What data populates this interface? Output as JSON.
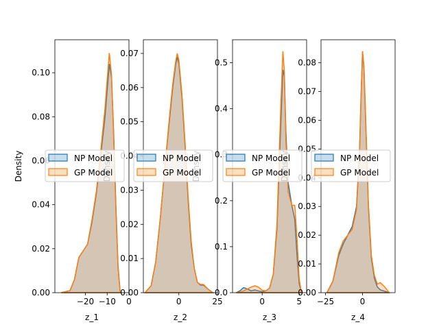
{
  "colors": {
    "np": "#1f77b4",
    "gp": "#ff7f0e",
    "overlap": "#d4c3b0"
  },
  "chart_data": [
    {
      "type": "area",
      "xlabel": "z_1",
      "ylabel": "Density",
      "xlim": [
        -34,
        0
      ],
      "ylim": [
        0,
        0.115
      ],
      "xticks": [
        -20,
        -10,
        0
      ],
      "xticklabels": [
        "−20",
        "−10",
        "0"
      ],
      "yticks": [
        0,
        0.02,
        0.04,
        0.06,
        0.08,
        0.1
      ],
      "yticklabels": [
        "0.00",
        "0.02",
        "0.04",
        "0.06",
        "0.08",
        "0.10"
      ],
      "legend": "center-left",
      "series": [
        {
          "name": "NP Model",
          "x": [
            -31,
            -27,
            -25,
            -23,
            -21,
            -19,
            -17,
            -15,
            -13,
            -11,
            -10,
            -9,
            -8,
            -7,
            -6,
            -5,
            -4
          ],
          "y": [
            0,
            0.001,
            0.006,
            0.016,
            0.019,
            0.022,
            0.032,
            0.045,
            0.062,
            0.08,
            0.092,
            0.104,
            0.098,
            0.072,
            0.04,
            0.012,
            0
          ]
        },
        {
          "name": "GP Model",
          "x": [
            -31,
            -27,
            -25,
            -23,
            -21,
            -19,
            -17,
            -15,
            -13,
            -11,
            -10,
            -9,
            -8,
            -7,
            -6,
            -5,
            -4
          ],
          "y": [
            0,
            0.001,
            0.006,
            0.016,
            0.019,
            0.022,
            0.033,
            0.046,
            0.064,
            0.084,
            0.097,
            0.109,
            0.099,
            0.07,
            0.038,
            0.011,
            0
          ]
        }
      ]
    },
    {
      "type": "area",
      "xlabel": "z_2",
      "ylabel": "Density",
      "xlim": [
        -23,
        25
      ],
      "ylim": [
        0,
        0.074
      ],
      "xticks": [
        0,
        25
      ],
      "xticklabels": [
        "0",
        "25"
      ],
      "yticks": [
        0,
        0.01,
        0.02,
        0.03,
        0.04,
        0.05,
        0.06,
        0.07
      ],
      "yticklabels": [
        "0.00",
        "0.01",
        "0.02",
        "0.03",
        "0.04",
        "0.05",
        "0.06",
        "0.07"
      ],
      "legend": "center-left",
      "series": [
        {
          "name": "NP Model",
          "x": [
            -22,
            -18,
            -15,
            -12,
            -9,
            -6,
            -4,
            -2,
            -1,
            0,
            2,
            4,
            6,
            8,
            10,
            12,
            14,
            16,
            19,
            22
          ],
          "y": [
            0,
            0.002,
            0.009,
            0.022,
            0.037,
            0.051,
            0.06,
            0.067,
            0.069,
            0.067,
            0.057,
            0.043,
            0.027,
            0.014,
            0.007,
            0.003,
            0.0022,
            0.0022,
            0.001,
            0
          ]
        },
        {
          "name": "GP Model",
          "x": [
            -22,
            -18,
            -15,
            -12,
            -9,
            -6,
            -4,
            -2,
            -1,
            0,
            2,
            4,
            6,
            8,
            10,
            12,
            14,
            16,
            19,
            22
          ],
          "y": [
            0,
            0.002,
            0.009,
            0.022,
            0.037,
            0.052,
            0.061,
            0.068,
            0.07,
            0.068,
            0.058,
            0.044,
            0.028,
            0.015,
            0.007,
            0.003,
            0.0024,
            0.0024,
            0.001,
            0
          ]
        }
      ]
    },
    {
      "type": "area",
      "xlabel": "z_3",
      "ylabel": "Density",
      "xlim": [
        -4,
        6
      ],
      "ylim": [
        0,
        0.55
      ],
      "xticks": [
        0,
        5
      ],
      "xticklabels": [
        "0",
        "5"
      ],
      "yticks": [
        0,
        0.1,
        0.2,
        0.3,
        0.4,
        0.5
      ],
      "yticklabels": [
        "0.0",
        "0.1",
        "0.2",
        "0.3",
        "0.4",
        "0.5"
      ],
      "legend": "center-left",
      "series": [
        {
          "name": "NP Model",
          "x": [
            -3.5,
            -3.0,
            -2.5,
            -2.0,
            -1.5,
            -1.0,
            -0.5,
            0,
            0.5,
            1.0,
            1.5,
            2.0,
            2.5,
            2.8,
            3.0,
            3.2,
            3.5,
            4.0,
            4.4,
            4.7,
            5.0,
            5.3
          ],
          "y": [
            0,
            0.004,
            0.011,
            0.008,
            0.004,
            0.006,
            0.004,
            0.002,
            0.004,
            0.01,
            0.04,
            0.14,
            0.36,
            0.485,
            0.47,
            0.35,
            0.24,
            0.19,
            0.16,
            0.08,
            0.02,
            0
          ]
        },
        {
          "name": "GP Model",
          "x": [
            -3.5,
            -3.0,
            -2.5,
            -2.0,
            -1.5,
            -1.0,
            -0.5,
            0,
            0.5,
            1.0,
            1.5,
            2.0,
            2.5,
            2.8,
            3.0,
            3.2,
            3.5,
            4.0,
            4.4,
            4.7,
            5.0,
            5.3
          ],
          "y": [
            0,
            0.001,
            0.004,
            0.008,
            0.012,
            0.015,
            0.012,
            0.005,
            0.004,
            0.01,
            0.04,
            0.15,
            0.4,
            0.525,
            0.48,
            0.33,
            0.22,
            0.19,
            0.19,
            0.12,
            0.03,
            0
          ]
        }
      ]
    },
    {
      "type": "area",
      "xlabel": "z_4",
      "ylabel": "Density",
      "xlim": [
        -28,
        22
      ],
      "ylim": [
        0,
        0.088
      ],
      "xticks": [
        -25,
        0
      ],
      "xticklabels": [
        "−25",
        "0"
      ],
      "yticks": [
        0,
        0.01,
        0.02,
        0.03,
        0.04,
        0.05,
        0.06,
        0.07,
        0.08
      ],
      "yticklabels": [
        "0.00",
        "0.01",
        "0.02",
        "0.03",
        "0.04",
        "0.05",
        "0.06",
        "0.07",
        "0.08"
      ],
      "legend": "center-left",
      "series": [
        {
          "name": "NP Model",
          "x": [
            -24,
            -20,
            -16,
            -13,
            -10,
            -7,
            -4,
            -2,
            -1,
            0,
            1,
            2,
            4,
            6,
            8,
            10,
            12,
            15,
            18
          ],
          "y": [
            0,
            0.004,
            0.013,
            0.017,
            0.02,
            0.023,
            0.03,
            0.05,
            0.068,
            0.084,
            0.078,
            0.062,
            0.03,
            0.012,
            0.005,
            0.002,
            0.001,
            0.0005,
            0
          ]
        },
        {
          "name": "GP Model",
          "x": [
            -24,
            -20,
            -16,
            -13,
            -10,
            -7,
            -4,
            -2,
            -1,
            0,
            1,
            2,
            4,
            6,
            8,
            10,
            12,
            15,
            18
          ],
          "y": [
            0,
            0.004,
            0.014,
            0.018,
            0.02,
            0.022,
            0.029,
            0.049,
            0.067,
            0.084,
            0.079,
            0.063,
            0.031,
            0.013,
            0.006,
            0.003,
            0.0035,
            0.002,
            0
          ]
        }
      ]
    }
  ]
}
